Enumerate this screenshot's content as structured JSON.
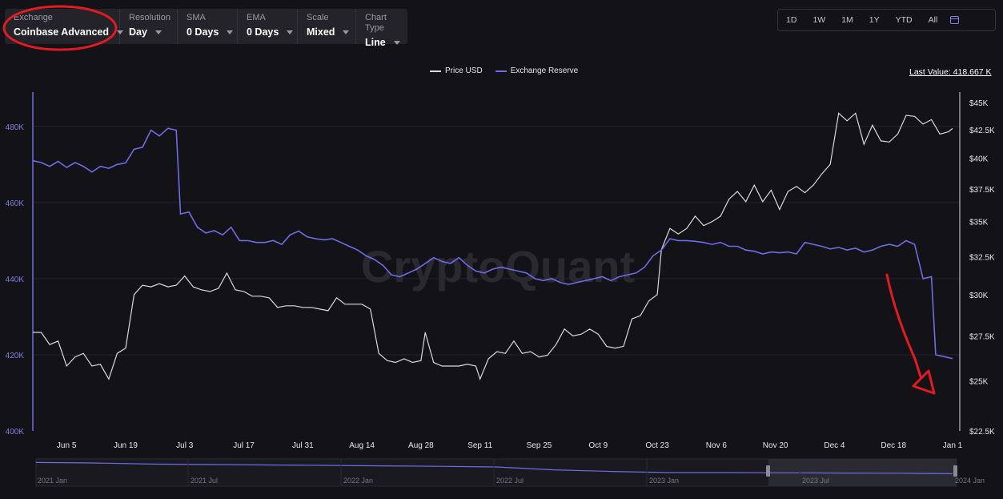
{
  "toolbar": {
    "exchange": {
      "label": "Exchange",
      "value": "Coinbase Advanced"
    },
    "resolution": {
      "label": "Resolution",
      "value": "Day"
    },
    "sma": {
      "label": "SMA",
      "value": "0 Days"
    },
    "ema": {
      "label": "EMA",
      "value": "0 Days"
    },
    "scale": {
      "label": "Scale",
      "value": "Mixed"
    },
    "chart_type": {
      "label": "Chart Type",
      "value": "Line"
    }
  },
  "ranges": [
    "1D",
    "1W",
    "1M",
    "1Y",
    "YTD",
    "All"
  ],
  "last_value": "Last Value: 418.667 K",
  "watermark": "CryptoQuant",
  "colors": {
    "price": "#d9d9d9",
    "reserve": "#6e6ce6",
    "background": "#131217",
    "annotation": "#e01b22"
  },
  "chart_data": {
    "type": "line",
    "legend": [
      "Price USD",
      "Exchange Reserve"
    ],
    "x_ticks": [
      "Jun 5",
      "Jun 19",
      "Jul 3",
      "Jul 17",
      "Jul 31",
      "Aug 14",
      "Aug 28",
      "Sep 11",
      "Sep 25",
      "Oct 9",
      "Oct 23",
      "Nov 6",
      "Nov 20",
      "Dec 4",
      "Dec 18",
      "Jan 1"
    ],
    "x_range": [
      "2023-05-28",
      "2024-01-01"
    ],
    "left_axis": {
      "ticks": [
        "400K",
        "420K",
        "440K",
        "460K",
        "480K"
      ],
      "range": [
        400000,
        489000
      ]
    },
    "right_axis": {
      "ticks": [
        "$22.5K",
        "$25K",
        "$27.5K",
        "$30K",
        "$32.5K",
        "$35K",
        "$37.5K",
        "$40K",
        "$42.5K",
        "$45K"
      ],
      "range": [
        22500,
        46000
      ],
      "scale": "log"
    },
    "series": [
      {
        "name": "Price USD",
        "axis": "right",
        "points": [
          [
            "2023-05-28",
            27700
          ],
          [
            "2023-05-30",
            27700
          ],
          [
            "2023-06-01",
            27000
          ],
          [
            "2023-06-03",
            27200
          ],
          [
            "2023-06-05",
            25800
          ],
          [
            "2023-06-07",
            26300
          ],
          [
            "2023-06-09",
            26500
          ],
          [
            "2023-06-11",
            25800
          ],
          [
            "2023-06-13",
            25900
          ],
          [
            "2023-06-15",
            25100
          ],
          [
            "2023-06-17",
            26500
          ],
          [
            "2023-06-19",
            26800
          ],
          [
            "2023-06-21",
            30000
          ],
          [
            "2023-06-23",
            30600
          ],
          [
            "2023-06-25",
            30500
          ],
          [
            "2023-06-27",
            30700
          ],
          [
            "2023-06-29",
            30500
          ],
          [
            "2023-07-01",
            30600
          ],
          [
            "2023-07-03",
            31200
          ],
          [
            "2023-07-05",
            30500
          ],
          [
            "2023-07-07",
            30300
          ],
          [
            "2023-07-09",
            30200
          ],
          [
            "2023-07-11",
            30400
          ],
          [
            "2023-07-13",
            31400
          ],
          [
            "2023-07-15",
            30300
          ],
          [
            "2023-07-17",
            30200
          ],
          [
            "2023-07-19",
            29900
          ],
          [
            "2023-07-21",
            29900
          ],
          [
            "2023-07-23",
            29800
          ],
          [
            "2023-07-25",
            29200
          ],
          [
            "2023-07-27",
            29300
          ],
          [
            "2023-07-29",
            29300
          ],
          [
            "2023-07-31",
            29200
          ],
          [
            "2023-08-02",
            29200
          ],
          [
            "2023-08-04",
            29100
          ],
          [
            "2023-08-06",
            29000
          ],
          [
            "2023-08-08",
            29800
          ],
          [
            "2023-08-10",
            29400
          ],
          [
            "2023-08-12",
            29400
          ],
          [
            "2023-08-14",
            29400
          ],
          [
            "2023-08-16",
            29100
          ],
          [
            "2023-08-18",
            26500
          ],
          [
            "2023-08-20",
            26100
          ],
          [
            "2023-08-22",
            26000
          ],
          [
            "2023-08-24",
            26200
          ],
          [
            "2023-08-26",
            26000
          ],
          [
            "2023-08-28",
            26100
          ],
          [
            "2023-08-29",
            27700
          ],
          [
            "2023-08-31",
            26000
          ],
          [
            "2023-09-02",
            25800
          ],
          [
            "2023-09-04",
            25800
          ],
          [
            "2023-09-06",
            25800
          ],
          [
            "2023-09-08",
            25900
          ],
          [
            "2023-09-10",
            25800
          ],
          [
            "2023-09-11",
            25100
          ],
          [
            "2023-09-13",
            26200
          ],
          [
            "2023-09-15",
            26600
          ],
          [
            "2023-09-17",
            26500
          ],
          [
            "2023-09-19",
            27200
          ],
          [
            "2023-09-21",
            26500
          ],
          [
            "2023-09-23",
            26600
          ],
          [
            "2023-09-25",
            26300
          ],
          [
            "2023-09-27",
            26400
          ],
          [
            "2023-09-29",
            27000
          ],
          [
            "2023-10-01",
            27900
          ],
          [
            "2023-10-03",
            27500
          ],
          [
            "2023-10-05",
            27600
          ],
          [
            "2023-10-07",
            27900
          ],
          [
            "2023-10-09",
            27600
          ],
          [
            "2023-10-11",
            26900
          ],
          [
            "2023-10-13",
            26800
          ],
          [
            "2023-10-15",
            26900
          ],
          [
            "2023-10-17",
            28500
          ],
          [
            "2023-10-19",
            28700
          ],
          [
            "2023-10-21",
            29600
          ],
          [
            "2023-10-23",
            30000
          ],
          [
            "2023-10-24",
            33000
          ],
          [
            "2023-10-26",
            34500
          ],
          [
            "2023-10-28",
            34100
          ],
          [
            "2023-10-30",
            34500
          ],
          [
            "2023-11-01",
            35400
          ],
          [
            "2023-11-03",
            34700
          ],
          [
            "2023-11-05",
            35000
          ],
          [
            "2023-11-07",
            35400
          ],
          [
            "2023-11-09",
            36700
          ],
          [
            "2023-11-11",
            37300
          ],
          [
            "2023-11-13",
            36500
          ],
          [
            "2023-11-15",
            37800
          ],
          [
            "2023-11-17",
            36500
          ],
          [
            "2023-11-19",
            37400
          ],
          [
            "2023-11-21",
            35900
          ],
          [
            "2023-11-23",
            37300
          ],
          [
            "2023-11-25",
            37700
          ],
          [
            "2023-11-27",
            37200
          ],
          [
            "2023-11-29",
            37800
          ],
          [
            "2023-12-01",
            38700
          ],
          [
            "2023-12-03",
            39500
          ],
          [
            "2023-12-05",
            44000
          ],
          [
            "2023-12-07",
            43300
          ],
          [
            "2023-12-09",
            44000
          ],
          [
            "2023-12-11",
            41200
          ],
          [
            "2023-12-13",
            42900
          ],
          [
            "2023-12-15",
            41500
          ],
          [
            "2023-12-17",
            41400
          ],
          [
            "2023-12-19",
            42100
          ],
          [
            "2023-12-21",
            43800
          ],
          [
            "2023-12-23",
            43700
          ],
          [
            "2023-12-25",
            43000
          ],
          [
            "2023-12-27",
            43400
          ],
          [
            "2023-12-29",
            42100
          ],
          [
            "2023-12-31",
            42300
          ],
          [
            "2024-01-01",
            42600
          ]
        ]
      },
      {
        "name": "Exchange Reserve",
        "axis": "left",
        "points": [
          [
            "2023-05-28",
            471000
          ],
          [
            "2023-05-30",
            470500
          ],
          [
            "2023-06-01",
            469500
          ],
          [
            "2023-06-03",
            470800
          ],
          [
            "2023-06-05",
            469200
          ],
          [
            "2023-06-07",
            470500
          ],
          [
            "2023-06-09",
            469500
          ],
          [
            "2023-06-11",
            468000
          ],
          [
            "2023-06-13",
            469500
          ],
          [
            "2023-06-15",
            469000
          ],
          [
            "2023-06-17",
            470000
          ],
          [
            "2023-06-19",
            470400
          ],
          [
            "2023-06-21",
            474000
          ],
          [
            "2023-06-23",
            474500
          ],
          [
            "2023-06-25",
            479000
          ],
          [
            "2023-06-27",
            477500
          ],
          [
            "2023-06-29",
            479500
          ],
          [
            "2023-07-01",
            479000
          ],
          [
            "2023-07-02",
            457000
          ],
          [
            "2023-07-04",
            457500
          ],
          [
            "2023-07-06",
            453500
          ],
          [
            "2023-07-08",
            452000
          ],
          [
            "2023-07-10",
            452600
          ],
          [
            "2023-07-12",
            451500
          ],
          [
            "2023-07-14",
            453500
          ],
          [
            "2023-07-16",
            450000
          ],
          [
            "2023-07-18",
            450000
          ],
          [
            "2023-07-20",
            449500
          ],
          [
            "2023-07-22",
            449500
          ],
          [
            "2023-07-24",
            450000
          ],
          [
            "2023-07-26",
            449000
          ],
          [
            "2023-07-28",
            451500
          ],
          [
            "2023-07-30",
            452500
          ],
          [
            "2023-08-01",
            451000
          ],
          [
            "2023-08-03",
            450500
          ],
          [
            "2023-08-05",
            450200
          ],
          [
            "2023-08-07",
            450500
          ],
          [
            "2023-08-09",
            449500
          ],
          [
            "2023-08-11",
            448500
          ],
          [
            "2023-08-13",
            447500
          ],
          [
            "2023-08-15",
            446000
          ],
          [
            "2023-08-17",
            445000
          ],
          [
            "2023-08-19",
            443500
          ],
          [
            "2023-08-21",
            441000
          ],
          [
            "2023-08-23",
            440500
          ],
          [
            "2023-08-25",
            441500
          ],
          [
            "2023-08-27",
            442500
          ],
          [
            "2023-08-29",
            444000
          ],
          [
            "2023-08-31",
            445500
          ],
          [
            "2023-09-02",
            444500
          ],
          [
            "2023-09-04",
            444000
          ],
          [
            "2023-09-06",
            445500
          ],
          [
            "2023-09-08",
            443500
          ],
          [
            "2023-09-10",
            442000
          ],
          [
            "2023-09-12",
            441500
          ],
          [
            "2023-09-14",
            442500
          ],
          [
            "2023-09-16",
            443000
          ],
          [
            "2023-09-18",
            442500
          ],
          [
            "2023-09-20",
            442000
          ],
          [
            "2023-09-22",
            441500
          ],
          [
            "2023-09-24",
            440000
          ],
          [
            "2023-09-26",
            439500
          ],
          [
            "2023-09-28",
            440000
          ],
          [
            "2023-09-30",
            439000
          ],
          [
            "2023-10-02",
            438500
          ],
          [
            "2023-10-04",
            439000
          ],
          [
            "2023-10-06",
            439500
          ],
          [
            "2023-10-08",
            440000
          ],
          [
            "2023-10-10",
            440500
          ],
          [
            "2023-10-12",
            439500
          ],
          [
            "2023-10-14",
            440500
          ],
          [
            "2023-10-16",
            441000
          ],
          [
            "2023-10-18",
            441500
          ],
          [
            "2023-10-20",
            443000
          ],
          [
            "2023-10-22",
            446000
          ],
          [
            "2023-10-24",
            447500
          ],
          [
            "2023-10-26",
            450500
          ],
          [
            "2023-10-28",
            450000
          ],
          [
            "2023-10-30",
            450000
          ],
          [
            "2023-11-01",
            449800
          ],
          [
            "2023-11-03",
            449500
          ],
          [
            "2023-11-05",
            449000
          ],
          [
            "2023-11-07",
            449500
          ],
          [
            "2023-11-09",
            448500
          ],
          [
            "2023-11-11",
            448500
          ],
          [
            "2023-11-13",
            447500
          ],
          [
            "2023-11-15",
            447200
          ],
          [
            "2023-11-17",
            446500
          ],
          [
            "2023-11-19",
            447000
          ],
          [
            "2023-11-21",
            446800
          ],
          [
            "2023-11-23",
            447000
          ],
          [
            "2023-11-25",
            446500
          ],
          [
            "2023-11-27",
            449500
          ],
          [
            "2023-11-29",
            449000
          ],
          [
            "2023-12-01",
            448500
          ],
          [
            "2023-12-03",
            447800
          ],
          [
            "2023-12-05",
            448200
          ],
          [
            "2023-12-07",
            447500
          ],
          [
            "2023-12-09",
            448000
          ],
          [
            "2023-12-11",
            447000
          ],
          [
            "2023-12-13",
            447500
          ],
          [
            "2023-12-15",
            448500
          ],
          [
            "2023-12-17",
            449000
          ],
          [
            "2023-12-19",
            448500
          ],
          [
            "2023-12-21",
            450000
          ],
          [
            "2023-12-23",
            449000
          ],
          [
            "2023-12-25",
            440000
          ],
          [
            "2023-12-27",
            440500
          ],
          [
            "2023-12-28",
            420000
          ],
          [
            "2023-12-30",
            419500
          ],
          [
            "2024-01-01",
            419000
          ]
        ]
      }
    ]
  },
  "navigator": {
    "labels": [
      "2021 Jan",
      "2021 Jul",
      "2022 Jan",
      "2022 Jul",
      "2023 Jan",
      "2023 Jul",
      "2024 Jan"
    ],
    "values": [
      0.95,
      0.93,
      0.88,
      0.86,
      0.84,
      0.82,
      0.8,
      0.78,
      0.75,
      0.62,
      0.55,
      0.5,
      0.5,
      0.49,
      0.48,
      0.47,
      0.45
    ]
  }
}
